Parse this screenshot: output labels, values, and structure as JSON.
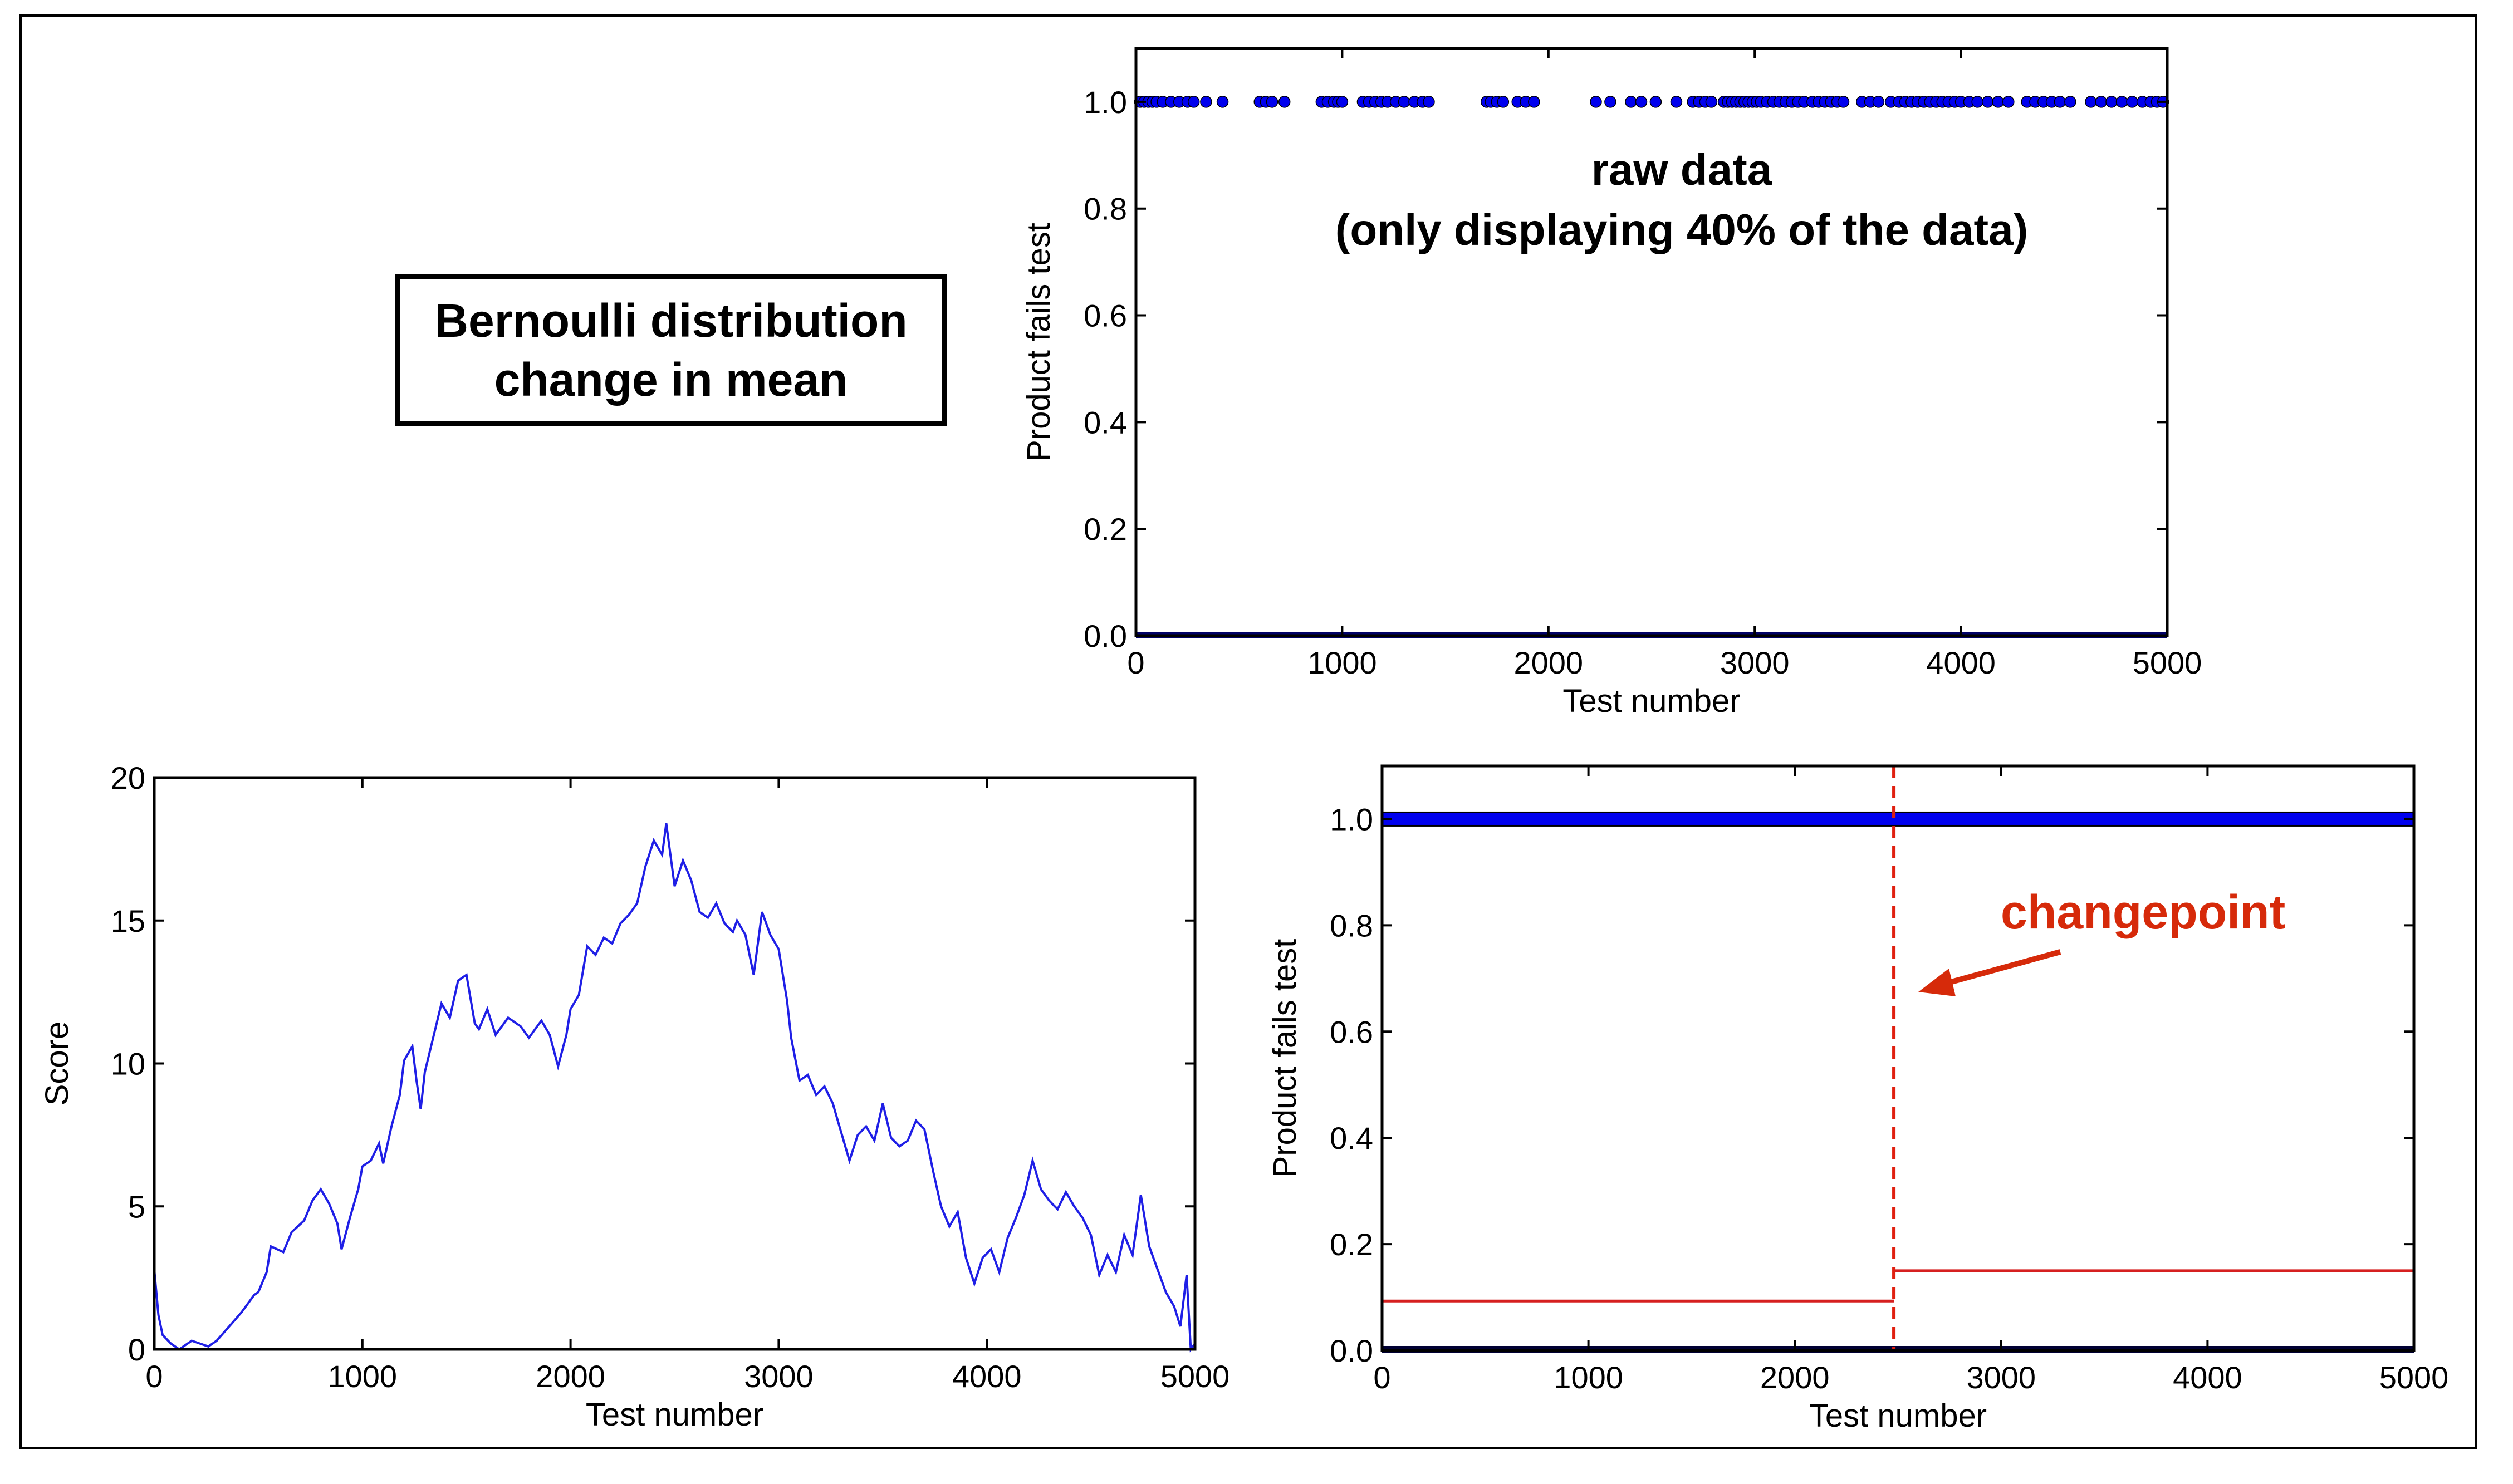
{
  "page": {
    "title_line1": "Bernoulli distribution",
    "title_line2": "change in mean"
  },
  "colors": {
    "points": "#0000ee",
    "line": "#1f1fe6",
    "changepoint": "#e02010",
    "annotation": "#d62a0a",
    "mean_line": "#d62020"
  },
  "chart_data": [
    {
      "type": "scatter",
      "id": "raw",
      "xlabel": "Test number",
      "ylabel": "Product fails test",
      "xlim": [
        0,
        5000
      ],
      "ylim": [
        0,
        1.1
      ],
      "xticks": [
        "0",
        "1000",
        "2000",
        "3000",
        "4000",
        "5000"
      ],
      "yticks": [
        "0.0",
        "0.2",
        "0.4",
        "0.6",
        "0.8",
        "1.0"
      ],
      "annotation": [
        "raw data",
        "(only displaying 40% of the data)"
      ],
      "series": [
        {
          "values_at_1": [
            20,
            40,
            60,
            80,
            100,
            130,
            170,
            210,
            250,
            280,
            340,
            420,
            600,
            630,
            660,
            720,
            900,
            930,
            960,
            980,
            1000,
            1100,
            1130,
            1160,
            1190,
            1220,
            1260,
            1300,
            1350,
            1390,
            1420,
            1700,
            1720,
            1750,
            1780,
            1850,
            1890,
            1930,
            2230,
            2300,
            2400,
            2450,
            2520,
            2620,
            2700,
            2730,
            2760,
            2790,
            2850,
            2870,
            2890,
            2910,
            2930,
            2950,
            2970,
            2990,
            3010,
            3030,
            3060,
            3090,
            3120,
            3150,
            3180,
            3210,
            3240,
            3280,
            3310,
            3340,
            3370,
            3400,
            3430,
            3520,
            3560,
            3600,
            3660,
            3700,
            3730,
            3760,
            3790,
            3820,
            3850,
            3880,
            3910,
            3940,
            3970,
            4000,
            4040,
            4080,
            4130,
            4180,
            4230,
            4320,
            4360,
            4400,
            4440,
            4480,
            4530,
            4630,
            4680,
            4730,
            4780,
            4830,
            4880,
            4920,
            4950,
            4980
          ]
        }
      ]
    },
    {
      "type": "line",
      "id": "score",
      "xlabel": "Test number",
      "ylabel": "Score",
      "xlim": [
        0,
        5000
      ],
      "ylim": [
        0,
        20
      ],
      "xticks": [
        "0",
        "1000",
        "2000",
        "3000",
        "4000",
        "5000"
      ],
      "yticks": [
        "0",
        "5",
        "10",
        "15",
        "20"
      ],
      "series": [
        {
          "x": [
            0,
            20,
            40,
            80,
            120,
            180,
            260,
            300,
            360,
            420,
            480,
            500,
            540,
            560,
            620,
            660,
            720,
            760,
            800,
            840,
            880,
            900,
            940,
            980,
            1000,
            1040,
            1080,
            1100,
            1140,
            1180,
            1200,
            1240,
            1260,
            1280,
            1300,
            1340,
            1380,
            1420,
            1460,
            1500,
            1540,
            1560,
            1600,
            1640,
            1700,
            1760,
            1800,
            1860,
            1900,
            1940,
            1980,
            2000,
            2040,
            2080,
            2120,
            2160,
            2200,
            2240,
            2280,
            2320,
            2360,
            2400,
            2440,
            2460,
            2500,
            2540,
            2580,
            2620,
            2660,
            2700,
            2740,
            2780,
            2800,
            2840,
            2880,
            2920,
            2960,
            3000,
            3040,
            3060,
            3100,
            3140,
            3180,
            3220,
            3260,
            3300,
            3340,
            3380,
            3420,
            3460,
            3500,
            3540,
            3580,
            3620,
            3660,
            3700,
            3740,
            3780,
            3820,
            3860,
            3900,
            3940,
            3980,
            4020,
            4060,
            4100,
            4140,
            4180,
            4220,
            4260,
            4300,
            4340,
            4380,
            4420,
            4460,
            4500,
            4540,
            4580,
            4620,
            4660,
            4700,
            4740,
            4780,
            4820,
            4860,
            4900,
            4930,
            4960,
            4980,
            5000
          ],
          "y": [
            2.8,
            1.2,
            0.5,
            0.2,
            0.0,
            0.3,
            0.1,
            0.3,
            0.8,
            1.3,
            1.9,
            2.0,
            2.7,
            3.6,
            3.4,
            4.1,
            4.5,
            5.2,
            5.6,
            5.1,
            4.4,
            3.5,
            4.6,
            5.6,
            6.4,
            6.6,
            7.2,
            6.5,
            7.8,
            8.9,
            10.1,
            10.6,
            9.4,
            8.4,
            9.7,
            10.9,
            12.1,
            11.6,
            12.9,
            13.1,
            11.4,
            11.2,
            11.9,
            11.0,
            11.6,
            11.3,
            10.9,
            11.5,
            11.0,
            9.9,
            11.0,
            11.9,
            12.4,
            14.1,
            13.8,
            14.4,
            14.2,
            14.9,
            15.2,
            15.6,
            16.9,
            17.8,
            17.3,
            18.4,
            16.2,
            17.1,
            16.4,
            15.3,
            15.1,
            15.6,
            14.9,
            14.6,
            15.0,
            14.5,
            13.1,
            15.3,
            14.5,
            14.0,
            12.2,
            10.9,
            9.4,
            9.6,
            8.9,
            9.2,
            8.6,
            7.6,
            6.6,
            7.5,
            7.8,
            7.3,
            8.6,
            7.4,
            7.1,
            7.3,
            8.0,
            7.7,
            6.3,
            5.0,
            4.3,
            4.8,
            3.2,
            2.3,
            3.2,
            3.5,
            2.7,
            3.9,
            4.6,
            5.4,
            6.6,
            5.6,
            5.2,
            4.9,
            5.5,
            5.0,
            4.6,
            4.0,
            2.6,
            3.3,
            2.7,
            4.0,
            3.3,
            5.4,
            3.6,
            2.8,
            2.0,
            1.5,
            0.8,
            2.6,
            0.0,
            0.2
          ]
        }
      ]
    },
    {
      "type": "scatter",
      "id": "changepoint",
      "xlabel": "Test number",
      "ylabel": "Product fails test",
      "xlim": [
        0,
        5000
      ],
      "ylim": [
        0,
        1.1
      ],
      "xticks": [
        "0",
        "1000",
        "2000",
        "3000",
        "4000",
        "5000"
      ],
      "yticks": [
        "0.0",
        "0.2",
        "0.4",
        "0.6",
        "0.8",
        "1.0"
      ],
      "changepoint_x": 2480,
      "segments": [
        {
          "x0": 0,
          "x1": 2480,
          "mean": 0.093
        },
        {
          "x0": 2480,
          "x1": 5000,
          "mean": 0.15
        }
      ],
      "annotation": "changepoint"
    }
  ]
}
